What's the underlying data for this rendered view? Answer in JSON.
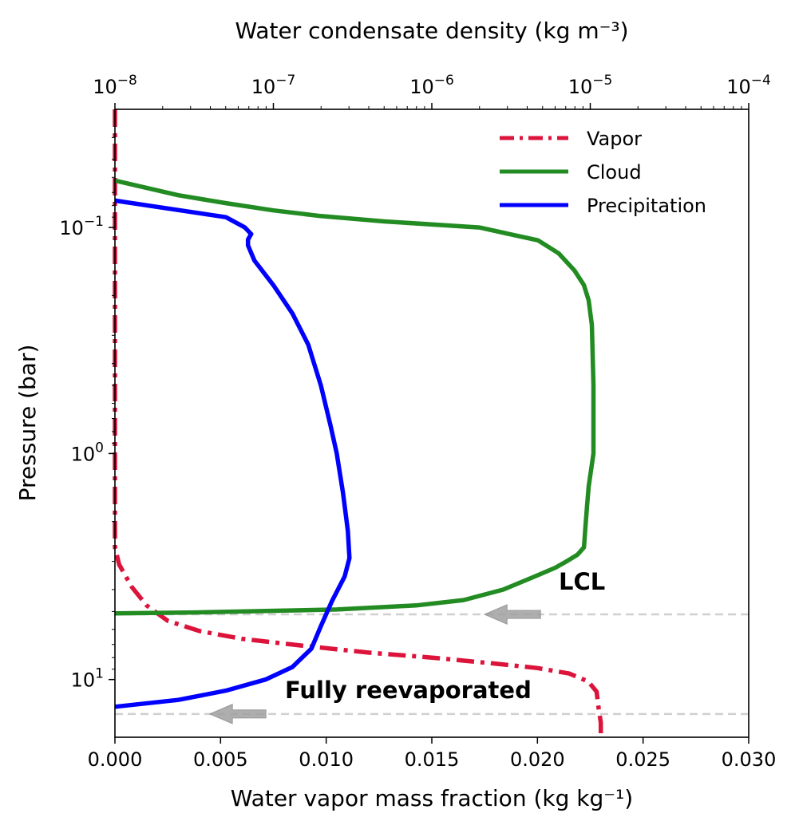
{
  "chart_data": {
    "type": "line",
    "title": "",
    "xlabel_bottom": "Water vapor mass fraction (kg kg⁻¹)",
    "xlabel_top": "Water condensate density (kg m⁻³)",
    "ylabel": "Pressure (bar)",
    "xlim_bottom": [
      0.0,
      0.03
    ],
    "xlim_top_log10": [
      -8,
      -4
    ],
    "ylim_pressure_bar": [
      0.03,
      18
    ],
    "y_scale": "log-inverted",
    "bottom_ticks": [
      "0.000",
      "0.005",
      "0.010",
      "0.015",
      "0.020",
      "0.025",
      "0.030"
    ],
    "bottom_tick_values": [
      0,
      0.005,
      0.01,
      0.015,
      0.02,
      0.025,
      0.03
    ],
    "top_ticks": [
      {
        "base": "10",
        "exp": "−8",
        "value": -8
      },
      {
        "base": "10",
        "exp": "−7",
        "value": -7
      },
      {
        "base": "10",
        "exp": "−6",
        "value": -6
      },
      {
        "base": "10",
        "exp": "−5",
        "value": -5
      },
      {
        "base": "10",
        "exp": "−4",
        "value": -4
      }
    ],
    "y_ticks": [
      {
        "base": "10",
        "exp": "−1",
        "value": 0.1
      },
      {
        "base": "10",
        "exp": "0",
        "value": 1
      },
      {
        "base": "10",
        "exp": "1",
        "value": 10
      }
    ],
    "legend_position": "top-right",
    "series": [
      {
        "name": "Vapor",
        "color": "#dc143c",
        "style": "dashdot",
        "x_axis": "bottom",
        "points": [
          [
            0.0,
            0.03
          ],
          [
            0.0,
            2.6
          ],
          [
            0.0002,
            3.1
          ],
          [
            0.0008,
            3.9
          ],
          [
            0.0015,
            4.7
          ],
          [
            0.0025,
            5.5
          ],
          [
            0.004,
            6.1
          ],
          [
            0.006,
            6.6
          ],
          [
            0.009,
            7.1
          ],
          [
            0.012,
            7.6
          ],
          [
            0.015,
            8.0
          ],
          [
            0.018,
            8.5
          ],
          [
            0.02,
            8.9
          ],
          [
            0.0215,
            9.4
          ],
          [
            0.0224,
            10.2
          ],
          [
            0.0228,
            11.3
          ],
          [
            0.0229,
            13.5
          ],
          [
            0.023,
            15.5
          ],
          [
            0.023,
            18
          ]
        ]
      },
      {
        "name": "Cloud",
        "color": "#228b22",
        "style": "solid",
        "x_axis": "top-log",
        "points": [
          [
            -8.0,
            0.062
          ],
          [
            -7.6,
            0.072
          ],
          [
            -7.3,
            0.078
          ],
          [
            -7.0,
            0.084
          ],
          [
            -6.7,
            0.089
          ],
          [
            -6.3,
            0.094
          ],
          [
            -5.7,
            0.1
          ],
          [
            -5.7,
            0.1
          ],
          [
            -5.33,
            0.114
          ],
          [
            -5.2,
            0.13
          ],
          [
            -5.1,
            0.155
          ],
          [
            -5.04,
            0.18
          ],
          [
            -5.01,
            0.21
          ],
          [
            -4.99,
            0.27
          ],
          [
            -4.98,
            0.5
          ],
          [
            -4.98,
            1.0
          ],
          [
            -5.01,
            1.4
          ],
          [
            -5.02,
            1.7
          ],
          [
            -5.03,
            2.1
          ],
          [
            -5.04,
            2.6
          ],
          [
            -5.08,
            2.8
          ],
          [
            -5.15,
            3.0
          ],
          [
            -5.22,
            3.2
          ],
          [
            -5.35,
            3.5
          ],
          [
            -5.55,
            4.0
          ],
          [
            -5.8,
            4.45
          ],
          [
            -6.1,
            4.7
          ],
          [
            -6.6,
            4.9
          ],
          [
            -7.5,
            5.05
          ],
          [
            -8.0,
            5.1
          ]
        ]
      },
      {
        "name": "Precipitation",
        "color": "#0000ff",
        "style": "solid",
        "x_axis": "top-log",
        "points": [
          [
            -8.0,
            0.076
          ],
          [
            -7.3,
            0.09
          ],
          [
            -7.18,
            0.1
          ],
          [
            -7.14,
            0.107
          ],
          [
            -7.16,
            0.113
          ],
          [
            -7.16,
            0.12
          ],
          [
            -7.12,
            0.14
          ],
          [
            -7.0,
            0.18
          ],
          [
            -6.88,
            0.24
          ],
          [
            -6.78,
            0.33
          ],
          [
            -6.7,
            0.5
          ],
          [
            -6.64,
            0.75
          ],
          [
            -6.6,
            1.0
          ],
          [
            -6.56,
            1.5
          ],
          [
            -6.53,
            2.2
          ],
          [
            -6.52,
            2.9
          ],
          [
            -6.55,
            3.5
          ],
          [
            -6.63,
            4.5
          ],
          [
            -6.7,
            5.8
          ],
          [
            -6.76,
            7.3
          ],
          [
            -6.88,
            8.8
          ],
          [
            -7.05,
            10.0
          ],
          [
            -7.3,
            11.2
          ],
          [
            -7.6,
            12.3
          ],
          [
            -8.0,
            13.2
          ]
        ]
      }
    ],
    "reference_lines": [
      {
        "label": "LCL",
        "pressure_bar": 5.15,
        "arrow_x_bottom": 0.0175
      },
      {
        "label": "Fully reevaporated",
        "pressure_bar": 14.2,
        "arrow_x_bottom": 0.0045
      }
    ],
    "colors": {
      "reference_line": "#d0d0d0",
      "arrow": "#a0a0a0"
    }
  }
}
